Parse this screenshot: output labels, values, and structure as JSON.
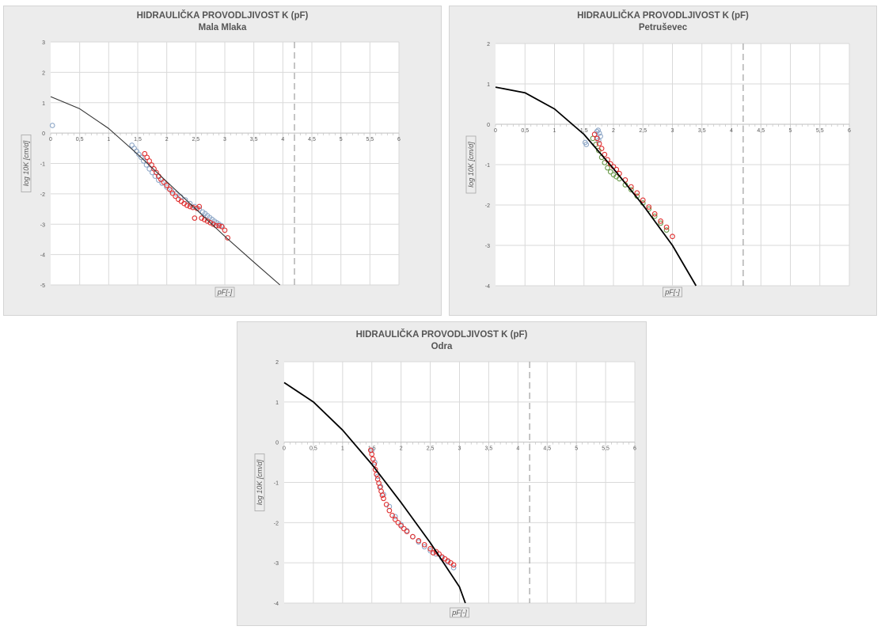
{
  "chart_data": [
    {
      "type": "scatter",
      "title": "HIDRAULIČKA PROVODLJIVOST K (pF)",
      "subtitle": "Mala Mlaka",
      "xlabel": "pF[-]",
      "ylabel": "log 10K [cm/d]",
      "xlim": [
        0,
        6
      ],
      "ylim": [
        -5,
        3
      ],
      "x_ticks": [
        "0",
        "0,5",
        "1",
        "1,5",
        "2",
        "2,5",
        "3",
        "3,5",
        "4",
        "4,5",
        "5",
        "5,5",
        "6"
      ],
      "y_ticks": [
        "3",
        "2",
        "1",
        "0",
        "-1",
        "-2",
        "-3",
        "-4",
        "-5"
      ],
      "grid": true,
      "vline_dashed_x": 4.2,
      "curve": {
        "x": [
          0,
          0.5,
          1,
          1.5,
          2,
          2.5,
          3,
          3.5,
          3.95
        ],
        "y": [
          1.2,
          0.8,
          0.15,
          -0.7,
          -1.6,
          -2.5,
          -3.4,
          -4.25,
          -5.0
        ],
        "color": "#333333"
      },
      "series": [
        {
          "color": "#8fa8c8",
          "x": [
            0.03,
            1.4,
            1.44,
            1.48,
            1.52,
            1.56,
            1.6,
            1.65,
            1.7,
            1.75,
            1.8,
            1.86,
            1.92,
            2.0,
            2.08,
            2.16,
            2.24,
            2.32,
            2.4,
            2.48,
            2.56,
            2.62,
            2.66,
            2.7,
            2.74,
            2.78,
            2.82,
            2.86,
            2.9,
            2.94
          ],
          "y": [
            0.25,
            -0.4,
            -0.5,
            -0.6,
            -0.7,
            -0.8,
            -0.92,
            -1.05,
            -1.18,
            -1.3,
            -1.42,
            -1.55,
            -1.65,
            -1.78,
            -1.9,
            -2.0,
            -2.1,
            -2.2,
            -2.32,
            -2.42,
            -2.5,
            -2.6,
            -2.65,
            -2.72,
            -2.78,
            -2.84,
            -2.9,
            -2.95,
            -3.0,
            -3.05
          ]
        },
        {
          "color": "#e03030",
          "x": [
            1.62,
            1.66,
            1.7,
            1.74,
            1.78,
            1.82,
            1.86,
            1.9,
            1.95,
            2.0,
            2.05,
            2.1,
            2.15,
            2.2,
            2.25,
            2.3,
            2.35,
            2.4,
            2.45,
            2.48,
            2.52,
            2.56,
            2.6,
            2.65,
            2.7,
            2.75,
            2.8,
            2.85,
            2.9,
            2.95,
            3.0,
            3.05
          ],
          "y": [
            -0.68,
            -0.8,
            -0.92,
            -1.05,
            -1.18,
            -1.3,
            -1.42,
            -1.52,
            -1.62,
            -1.72,
            -1.85,
            -1.98,
            -2.08,
            -2.18,
            -2.25,
            -2.32,
            -2.38,
            -2.42,
            -2.45,
            -2.8,
            -2.48,
            -2.42,
            -2.8,
            -2.85,
            -2.9,
            -2.95,
            -3.0,
            -3.05,
            -3.05,
            -3.08,
            -3.2,
            -3.45
          ]
        }
      ]
    },
    {
      "type": "scatter",
      "title": "HIDRAULIČKA PROVODLJIVOST K (pF)",
      "subtitle": "Petruševec",
      "xlabel": "pF[-]",
      "ylabel": "log 10K [cm/d]",
      "xlim": [
        0,
        6
      ],
      "ylim": [
        -4,
        2
      ],
      "x_ticks": [
        "0",
        "0,5",
        "1",
        "1,5",
        "2",
        "2,5",
        "3",
        "3,5",
        "4",
        "4,5",
        "5",
        "5,5",
        "6"
      ],
      "y_ticks": [
        "2",
        "1",
        "0",
        "-1",
        "-2",
        "-3",
        "-4"
      ],
      "grid": true,
      "vline_dashed_x": 4.2,
      "curve": {
        "x": [
          0,
          0.5,
          1,
          1.5,
          2,
          2.5,
          3,
          3.4
        ],
        "y": [
          0.92,
          0.78,
          0.38,
          -0.25,
          -1.1,
          -2.0,
          -3.0,
          -4.0
        ],
        "color": "#000000"
      },
      "series": [
        {
          "color": "#8fa8c8",
          "x": [
            1.52,
            1.54,
            1.72,
            1.74,
            1.76,
            1.78,
            1.75,
            1.73
          ],
          "y": [
            -0.45,
            -0.5,
            -0.18,
            -0.15,
            -0.22,
            -0.3,
            -0.4,
            -0.35
          ]
        },
        {
          "color": "#6a9a4a",
          "x": [
            1.65,
            1.7,
            1.75,
            1.8,
            1.85,
            1.9,
            1.95,
            2.0,
            2.05,
            2.1,
            2.2,
            2.3,
            2.4,
            2.5,
            2.6,
            2.7,
            2.8,
            2.9
          ],
          "y": [
            -0.35,
            -0.5,
            -0.65,
            -0.82,
            -0.95,
            -1.08,
            -1.18,
            -1.25,
            -1.3,
            -1.35,
            -1.5,
            -1.62,
            -1.78,
            -1.95,
            -2.1,
            -2.28,
            -2.45,
            -2.62
          ]
        },
        {
          "color": "#e03030",
          "x": [
            1.68,
            1.72,
            1.76,
            1.8,
            1.85,
            1.9,
            1.95,
            2.0,
            2.05,
            2.1,
            2.2,
            2.3,
            2.4,
            2.5,
            2.6,
            2.7,
            2.8,
            2.9,
            3.0
          ],
          "y": [
            -0.25,
            -0.35,
            -0.48,
            -0.6,
            -0.75,
            -0.88,
            -0.98,
            -1.05,
            -1.12,
            -1.22,
            -1.38,
            -1.55,
            -1.7,
            -1.88,
            -2.05,
            -2.22,
            -2.4,
            -2.55,
            -2.78
          ]
        }
      ]
    },
    {
      "type": "scatter",
      "title": "HIDRAULIČKA PROVODLJIVOST K (pF)",
      "subtitle": "Odra",
      "xlabel": "pF[-]",
      "ylabel": "log 10K [cm/d]",
      "xlim": [
        0,
        6
      ],
      "ylim": [
        -4,
        2
      ],
      "x_ticks": [
        "0",
        "0,5",
        "1",
        "1,5",
        "2",
        "2,5",
        "3",
        "3,5",
        "4",
        "4,5",
        "5",
        "5,5",
        "6"
      ],
      "y_ticks": [
        "2",
        "1",
        "0",
        "-1",
        "-2",
        "-3",
        "-4"
      ],
      "grid": true,
      "vline_dashed_x": 4.2,
      "curve": {
        "x": [
          0,
          0.5,
          1,
          1.5,
          2,
          2.5,
          3,
          3.1
        ],
        "y": [
          1.48,
          1.0,
          0.3,
          -0.55,
          -1.5,
          -2.5,
          -3.6,
          -4.0
        ],
        "color": "#000000"
      },
      "series": [
        {
          "color": "#8fa8c8",
          "x": [
            1.5,
            1.55,
            1.6,
            1.65,
            1.7,
            1.8,
            1.9,
            2.0,
            2.1,
            2.2,
            2.3,
            2.4,
            2.5,
            2.6,
            2.7,
            2.8,
            2.9
          ],
          "y": [
            -0.2,
            -0.5,
            -0.85,
            -1.1,
            -1.3,
            -1.6,
            -1.85,
            -2.05,
            -2.2,
            -2.35,
            -2.48,
            -2.6,
            -2.7,
            -2.78,
            -2.88,
            -2.98,
            -3.12
          ]
        },
        {
          "color": "#e03030",
          "x": [
            1.48,
            1.5,
            1.52,
            1.54,
            1.56,
            1.58,
            1.6,
            1.62,
            1.64,
            1.66,
            1.68,
            1.7,
            1.75,
            1.8,
            1.85,
            1.9,
            1.95,
            2.0,
            2.05,
            2.1,
            2.2,
            2.3,
            2.4,
            2.5,
            2.55,
            2.6,
            2.65,
            2.7,
            2.75,
            2.8,
            2.85,
            2.9
          ],
          "y": [
            -0.2,
            -0.3,
            -0.42,
            -0.55,
            -0.68,
            -0.8,
            -0.92,
            -1.02,
            -1.12,
            -1.22,
            -1.32,
            -1.4,
            -1.55,
            -1.7,
            -1.82,
            -1.92,
            -2.0,
            -2.08,
            -2.15,
            -2.22,
            -2.35,
            -2.45,
            -2.55,
            -2.65,
            -2.75,
            -2.72,
            -2.78,
            -2.85,
            -2.9,
            -2.95,
            -3.0,
            -3.05
          ]
        }
      ]
    }
  ]
}
